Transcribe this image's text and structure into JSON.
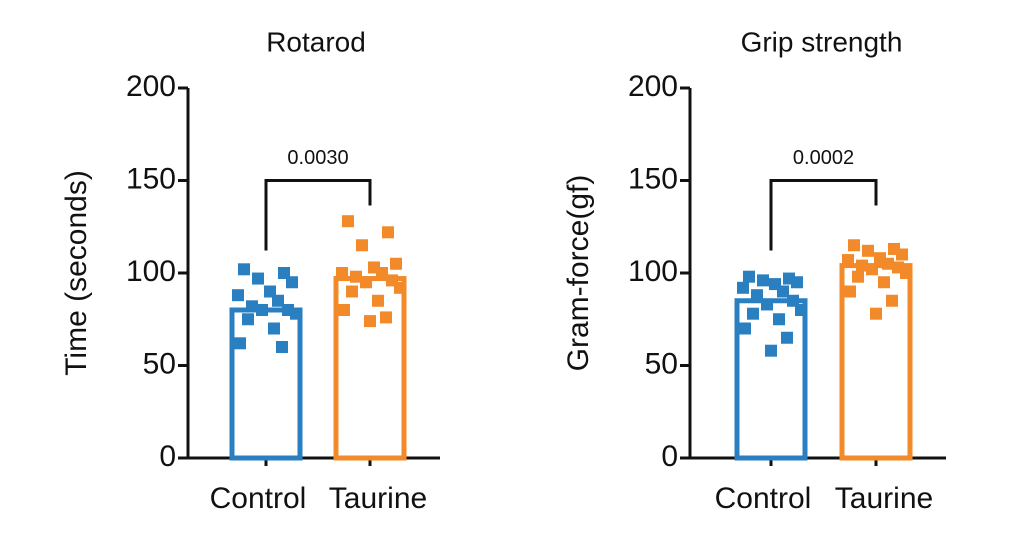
{
  "chart_data": [
    {
      "type": "bar",
      "title": "Rotarod",
      "ylabel": "Time (seconds)",
      "categories": [
        "Control",
        "Taurine"
      ],
      "values": [
        80,
        97
      ],
      "colors": [
        "#2a7fc1",
        "#f28a2a"
      ],
      "points": [
        [
          102,
          100,
          97,
          95,
          90,
          88,
          85,
          82,
          80,
          80,
          78,
          75,
          70,
          62,
          60
        ],
        [
          128,
          122,
          115,
          105,
          103,
          100,
          100,
          98,
          96,
          95,
          92,
          90,
          85,
          80,
          76,
          74
        ]
      ],
      "ylim": [
        0,
        200
      ],
      "yticks": [
        0,
        50,
        100,
        150,
        200
      ],
      "annotation": "0.0030"
    },
    {
      "type": "bar",
      "title": "Grip strength",
      "ylabel": "Gram-force(gf)",
      "categories": [
        "Control",
        "Taurine"
      ],
      "values": [
        85,
        104
      ],
      "colors": [
        "#2a7fc1",
        "#f28a2a"
      ],
      "points": [
        [
          98,
          97,
          96,
          95,
          94,
          92,
          90,
          88,
          85,
          83,
          80,
          78,
          75,
          70,
          65,
          58
        ],
        [
          115,
          113,
          112,
          110,
          108,
          107,
          105,
          104,
          103,
          102,
          100,
          98,
          95,
          90,
          85,
          78
        ]
      ],
      "ylim": [
        0,
        200
      ],
      "yticks": [
        0,
        50,
        100,
        150,
        200
      ],
      "annotation": "0.0002"
    }
  ]
}
